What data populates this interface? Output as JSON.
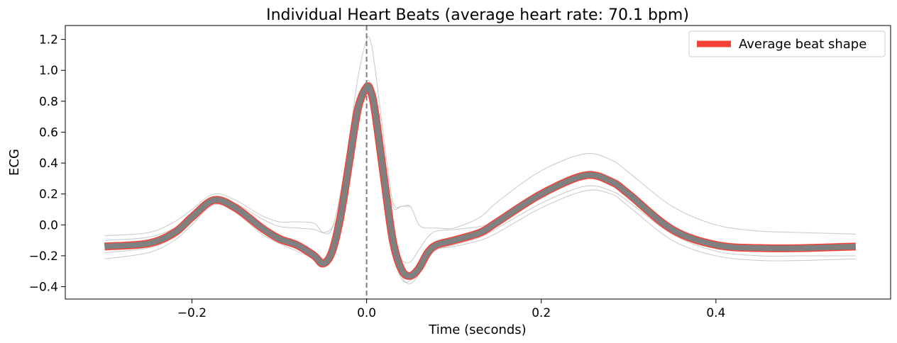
{
  "chart_data": {
    "type": "line",
    "title": "Individual Heart Beats (average heart rate: 70.1 bpm)",
    "xlabel": "Time (seconds)",
    "ylabel": "ECG",
    "xlim": [
      -0.345,
      0.6
    ],
    "ylim": [
      -0.48,
      1.29
    ],
    "xticks": [
      -0.2,
      0.0,
      0.2,
      0.4
    ],
    "xtick_labels": [
      "−0.2",
      "0.0",
      "0.2",
      "0.4"
    ],
    "yticks": [
      -0.4,
      -0.2,
      0.0,
      0.2,
      0.4,
      0.6,
      0.8,
      1.0,
      1.2
    ],
    "ytick_labels": [
      "−0.4",
      "−0.2",
      "0.0",
      "0.2",
      "0.4",
      "0.6",
      "0.8",
      "1.0",
      "1.2"
    ],
    "grid": false,
    "legend_position": "top-right",
    "vline": {
      "x": 0.0,
      "style": "dashed",
      "color": "#808080"
    },
    "colors": {
      "average": "#f44336",
      "average_overlay": "#808080",
      "beats": "#c8c8c8"
    },
    "series": [
      {
        "name": "Average beat shape",
        "role": "average",
        "x": [
          -0.3,
          -0.25,
          -0.22,
          -0.2,
          -0.175,
          -0.15,
          -0.12,
          -0.1,
          -0.08,
          -0.06,
          -0.05,
          -0.04,
          -0.03,
          -0.02,
          -0.01,
          0.0,
          0.005,
          0.01,
          0.02,
          0.03,
          0.04,
          0.05,
          0.06,
          0.07,
          0.08,
          0.1,
          0.13,
          0.15,
          0.2,
          0.25,
          0.28,
          0.3,
          0.35,
          0.4,
          0.45,
          0.5,
          0.56
        ],
        "y": [
          -0.14,
          -0.12,
          -0.05,
          0.05,
          0.16,
          0.11,
          -0.02,
          -0.09,
          -0.13,
          -0.2,
          -0.25,
          -0.18,
          0.05,
          0.4,
          0.75,
          0.89,
          0.86,
          0.72,
          0.3,
          -0.1,
          -0.29,
          -0.33,
          -0.28,
          -0.18,
          -0.13,
          -0.1,
          -0.05,
          0.02,
          0.2,
          0.32,
          0.28,
          0.2,
          -0.03,
          -0.13,
          -0.15,
          -0.15,
          -0.14
        ]
      },
      {
        "x": [
          -0.3,
          -0.25,
          -0.22,
          -0.2,
          -0.175,
          -0.15,
          -0.12,
          -0.1,
          -0.08,
          -0.06,
          -0.05,
          -0.04,
          -0.03,
          -0.02,
          -0.01,
          0.0,
          0.005,
          0.01,
          0.02,
          0.03,
          0.04,
          0.05,
          0.06,
          0.07,
          0.08,
          0.1,
          0.13,
          0.15,
          0.2,
          0.25,
          0.28,
          0.3,
          0.35,
          0.4,
          0.45,
          0.5,
          0.56
        ],
        "y": [
          -0.07,
          -0.05,
          0.02,
          0.1,
          0.2,
          0.16,
          0.06,
          0.02,
          0.02,
          0.01,
          -0.05,
          -0.03,
          0.2,
          0.55,
          0.95,
          1.2,
          1.18,
          1.0,
          0.55,
          0.15,
          0.12,
          0.12,
          0.0,
          -0.02,
          -0.02,
          -0.02,
          0.05,
          0.15,
          0.35,
          0.46,
          0.42,
          0.34,
          0.12,
          0.0,
          -0.04,
          -0.05,
          -0.06
        ]
      },
      {
        "x": [
          -0.3,
          -0.25,
          -0.22,
          -0.2,
          -0.175,
          -0.15,
          -0.12,
          -0.1,
          -0.08,
          -0.06,
          -0.05,
          -0.04,
          -0.03,
          -0.02,
          -0.01,
          0.0,
          0.005,
          0.01,
          0.02,
          0.03,
          0.04,
          0.05
        ],
        "y": [
          -0.1,
          -0.08,
          -0.02,
          0.07,
          0.18,
          0.14,
          0.04,
          -0.01,
          -0.02,
          -0.03,
          -0.05,
          -0.02,
          0.1,
          0.45,
          0.8,
          0.93,
          0.9,
          0.78,
          0.4,
          0.12,
          0.12,
          0.12
        ]
      },
      {
        "x": [
          -0.3,
          -0.25,
          -0.22,
          -0.2,
          -0.175,
          -0.15,
          -0.12,
          -0.1,
          -0.08,
          -0.06,
          -0.05,
          -0.04,
          -0.03,
          -0.02,
          -0.01,
          0.0,
          0.005,
          0.01,
          0.02,
          0.03,
          0.04,
          0.05,
          0.06,
          0.07,
          0.08,
          0.1,
          0.13,
          0.15,
          0.2,
          0.25,
          0.28,
          0.3,
          0.35,
          0.4,
          0.45,
          0.5,
          0.56
        ],
        "y": [
          -0.22,
          -0.18,
          -0.1,
          0.0,
          0.13,
          0.08,
          -0.06,
          -0.12,
          -0.17,
          -0.22,
          -0.27,
          -0.2,
          0.0,
          0.35,
          0.7,
          0.85,
          0.82,
          0.68,
          0.25,
          -0.15,
          -0.35,
          -0.36,
          -0.3,
          -0.22,
          -0.16,
          -0.13,
          -0.08,
          -0.02,
          0.14,
          0.25,
          0.22,
          0.15,
          -0.06,
          -0.17,
          -0.2,
          -0.2,
          -0.2
        ]
      },
      {
        "x": [
          -0.3,
          -0.25,
          -0.22,
          -0.2,
          -0.175,
          -0.15,
          -0.12,
          -0.1,
          -0.08,
          -0.06,
          -0.05,
          -0.04,
          -0.03,
          -0.02,
          -0.01,
          0.0,
          0.005,
          0.01,
          0.02,
          0.03,
          0.04,
          0.05,
          0.06,
          0.07,
          0.08,
          0.1,
          0.13,
          0.15,
          0.2,
          0.25,
          0.28,
          0.3,
          0.35,
          0.4,
          0.45,
          0.5,
          0.56
        ],
        "y": [
          -0.18,
          -0.15,
          -0.08,
          0.02,
          0.15,
          0.1,
          -0.04,
          -0.1,
          -0.15,
          -0.21,
          -0.26,
          -0.19,
          0.03,
          0.38,
          0.72,
          0.87,
          0.84,
          0.7,
          0.28,
          -0.12,
          -0.33,
          -0.38,
          -0.32,
          -0.22,
          -0.16,
          -0.14,
          -0.1,
          -0.05,
          0.11,
          0.22,
          0.2,
          0.12,
          -0.1,
          -0.2,
          -0.23,
          -0.23,
          -0.22
        ]
      },
      {
        "x": [
          -0.3,
          -0.25,
          -0.22,
          -0.2,
          -0.175,
          -0.15,
          -0.12,
          -0.1,
          -0.08,
          -0.06,
          -0.05,
          -0.04,
          -0.03,
          -0.02,
          -0.01,
          0.0,
          0.005,
          0.01,
          0.02,
          0.03,
          0.04,
          0.05,
          0.06,
          0.07,
          0.08,
          0.1,
          0.13,
          0.15,
          0.2,
          0.25,
          0.28,
          0.3,
          0.35,
          0.4,
          0.45,
          0.5,
          0.56
        ],
        "y": [
          -0.12,
          -0.1,
          -0.03,
          0.07,
          0.17,
          0.12,
          -0.01,
          -0.07,
          -0.11,
          -0.17,
          -0.22,
          -0.15,
          0.08,
          0.42,
          0.78,
          0.9,
          0.87,
          0.73,
          0.32,
          -0.05,
          -0.22,
          -0.24,
          -0.16,
          -0.08,
          -0.04,
          -0.03,
          -0.01,
          0.03,
          0.2,
          0.31,
          0.27,
          0.19,
          -0.02,
          -0.11,
          -0.13,
          -0.13,
          -0.12
        ]
      }
    ]
  }
}
